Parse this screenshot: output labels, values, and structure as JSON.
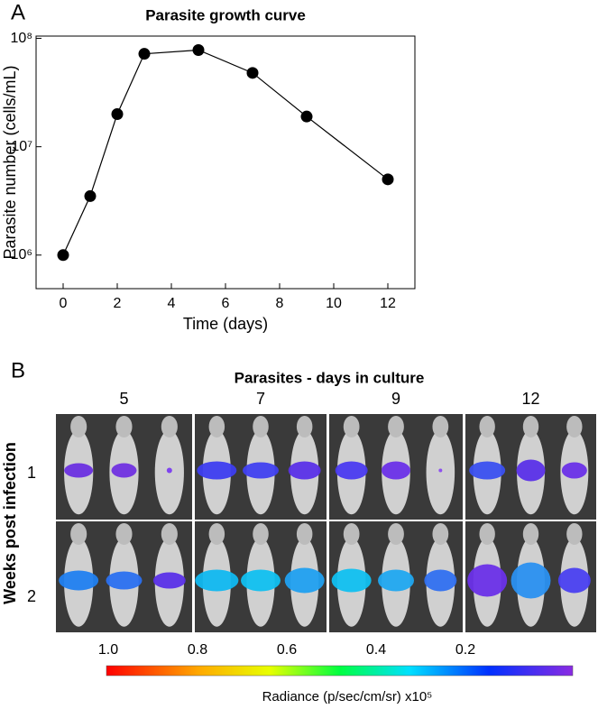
{
  "chart_data": {
    "type": "line",
    "panel_label": "A",
    "title": "Parasite growth curve",
    "x_label": "Time (days)",
    "y_label": "Parasite number (cells/mL)",
    "x": [
      0,
      1,
      2,
      3,
      5,
      7,
      9,
      12
    ],
    "values": [
      1000000,
      3500000,
      20000000,
      72000000,
      78000000,
      48000000,
      19000000,
      5000000
    ],
    "color": "#000000",
    "y_scale": "log",
    "xlim": [
      -1,
      13
    ],
    "xticks": [
      0,
      2,
      4,
      6,
      8,
      10,
      12
    ],
    "ylim": [
      490000,
      105000000
    ],
    "yticks": [
      {
        "value": 1000000,
        "label": "10⁶"
      },
      {
        "value": 10000000,
        "label": "10⁷"
      },
      {
        "value": 100000000,
        "label": "10⁸"
      }
    ]
  },
  "panel_b": {
    "panel_label": "B",
    "title": "Parasites - days in culture",
    "columns": [
      "5",
      "7",
      "9",
      "12"
    ],
    "rows_label": "Weeks post infection",
    "rows": [
      "1",
      "2"
    ],
    "colorbar": {
      "clim": [
        1,
        0
      ],
      "ticks": [
        {
          "value": 1,
          "label": "1.0"
        },
        {
          "value": 0.8,
          "label": "0.8"
        },
        {
          "value": 0.6,
          "label": "0.6"
        },
        {
          "value": 0.4,
          "label": "0.4"
        },
        {
          "value": 0.2,
          "label": "0.2"
        }
      ],
      "label": "Radiance (p/sec/cm/sr) x10⁵"
    }
  }
}
